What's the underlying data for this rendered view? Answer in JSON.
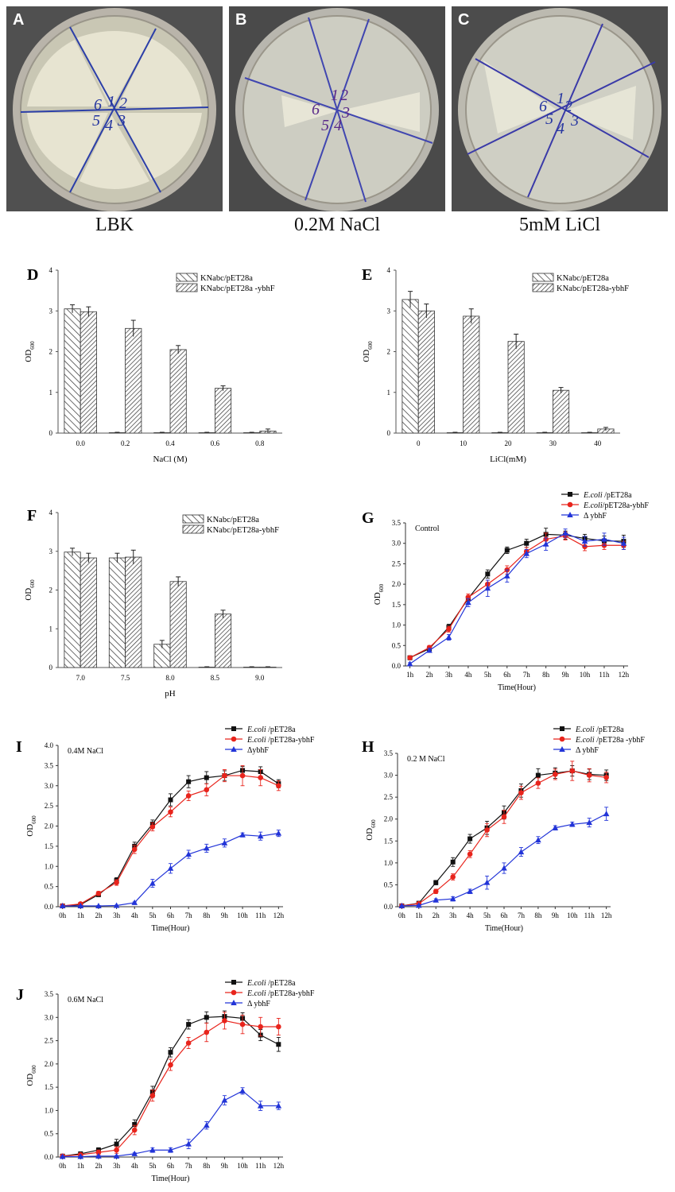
{
  "plates": [
    {
      "letter": "A",
      "caption": "LBK",
      "sectors": [
        "1",
        "2",
        "3",
        "4",
        "5",
        "6"
      ]
    },
    {
      "letter": "B",
      "caption": "0.2M NaCl",
      "sectors": [
        "1",
        "2",
        "3",
        "4",
        "5",
        "6"
      ]
    },
    {
      "letter": "C",
      "caption": "5mM LiCl",
      "sectors": [
        "1",
        "2",
        "3",
        "4",
        "5",
        "6"
      ]
    }
  ],
  "colors": {
    "black": "#111111",
    "red": "#e8241c",
    "blue": "#2234d8"
  },
  "chart_data": [
    {
      "panel": "D",
      "type": "bar",
      "categories": [
        "0.0",
        "0.2",
        "0.4",
        "0.6",
        "0.8"
      ],
      "xlabel": "NaCl (M)",
      "ylabel": "OD",
      "ylabel_sub": "600",
      "ylim": [
        0,
        4
      ],
      "yticks": [
        "0",
        "1",
        "2",
        "3",
        "4"
      ],
      "series": [
        {
          "name": "KNabc/pET28a",
          "pattern": "back",
          "values": [
            3.05,
            0.01,
            0.01,
            0.01,
            0.01
          ],
          "errors": [
            0.1,
            0.01,
            0.01,
            0.01,
            0.01
          ]
        },
        {
          "name": "KNabc/pET28a -ybhF",
          "pattern": "fwd",
          "values": [
            2.98,
            2.57,
            2.05,
            1.1,
            0.05
          ],
          "errors": [
            0.12,
            0.2,
            0.1,
            0.06,
            0.05
          ]
        }
      ]
    },
    {
      "panel": "E",
      "type": "bar",
      "categories": [
        "0",
        "10",
        "20",
        "30",
        "40"
      ],
      "xlabel": "LiCl(mM)",
      "ylabel": "OD",
      "ylabel_sub": "600",
      "ylim": [
        0,
        4
      ],
      "yticks": [
        "0",
        "1",
        "2",
        "3",
        "4"
      ],
      "series": [
        {
          "name": "KNabc/pET28a",
          "pattern": "back",
          "values": [
            3.28,
            0.01,
            0.01,
            0.01,
            0.01
          ],
          "errors": [
            0.2,
            0.01,
            0.01,
            0.01,
            0.01
          ]
        },
        {
          "name": "KNabc/pET28a-ybhF",
          "pattern": "fwd",
          "values": [
            3.0,
            2.87,
            2.25,
            1.05,
            0.1
          ],
          "errors": [
            0.17,
            0.18,
            0.18,
            0.07,
            0.04
          ]
        }
      ]
    },
    {
      "panel": "F",
      "type": "bar",
      "categories": [
        "7.0",
        "7.5",
        "8.0",
        "8.5",
        "9.0"
      ],
      "xlabel": "pH",
      "ylabel": "OD",
      "ylabel_sub": "600",
      "ylim": [
        0,
        4
      ],
      "yticks": [
        "0",
        "1",
        "2",
        "3",
        "4"
      ],
      "series": [
        {
          "name": "KNabc/pET28a",
          "pattern": "back",
          "values": [
            2.98,
            2.83,
            0.6,
            0.01,
            0.01
          ],
          "errors": [
            0.1,
            0.12,
            0.1,
            0.01,
            0.01
          ]
        },
        {
          "name": "KNabc/pET28a-ybhF",
          "pattern": "fwd",
          "values": [
            2.83,
            2.85,
            2.22,
            1.38,
            0.01
          ],
          "errors": [
            0.12,
            0.18,
            0.12,
            0.1,
            0.01
          ]
        }
      ]
    },
    {
      "panel": "G",
      "type": "line",
      "annotation": "Control",
      "x": [
        "1h",
        "2h",
        "3h",
        "4h",
        "5h",
        "6h",
        "7h",
        "8h",
        "9h",
        "10h",
        "11h",
        "12h"
      ],
      "xlabel": "Time(Hour)",
      "ylabel": "OD",
      "ylabel_sub": "600",
      "ylim": [
        0,
        3.5
      ],
      "yticks": [
        "0.0",
        "0.5",
        "1.0",
        "1.5",
        "2.0",
        "2.5",
        "3.0",
        "3.5"
      ],
      "series": [
        {
          "name_italic": "E.coli",
          "name_rest": " /pET28a",
          "color": "black",
          "marker": "square",
          "values": [
            0.2,
            0.42,
            0.95,
            1.65,
            2.25,
            2.83,
            3.0,
            3.22,
            3.2,
            3.12,
            3.06,
            3.05
          ],
          "errors": [
            0.03,
            0.05,
            0.07,
            0.07,
            0.1,
            0.08,
            0.1,
            0.15,
            0.1,
            0.1,
            0.12,
            0.15
          ]
        },
        {
          "name_italic": "E.coli",
          "name_rest": "/pET28a-ybhF",
          "color": "red",
          "marker": "circle",
          "values": [
            0.2,
            0.45,
            0.9,
            1.68,
            2.0,
            2.35,
            2.8,
            3.1,
            3.18,
            2.92,
            2.95,
            2.95
          ],
          "errors": [
            0.03,
            0.05,
            0.07,
            0.08,
            0.1,
            0.1,
            0.1,
            0.15,
            0.1,
            0.1,
            0.1,
            0.1
          ]
        },
        {
          "name_italic": "",
          "name_rest": "Δ ybhF",
          "color": "blue",
          "marker": "triangle",
          "values": [
            0.05,
            0.38,
            0.7,
            1.55,
            1.9,
            2.2,
            2.75,
            2.98,
            3.25,
            3.05,
            3.1,
            3.0
          ],
          "errors": [
            0.03,
            0.05,
            0.07,
            0.1,
            0.2,
            0.15,
            0.1,
            0.15,
            0.1,
            0.12,
            0.15,
            0.15
          ]
        }
      ]
    },
    {
      "panel": "I",
      "type": "line",
      "annotation": "0.4M NaCl",
      "x": [
        "0h",
        "1h",
        "2h",
        "3h",
        "4h",
        "5h",
        "6h",
        "7h",
        "8h",
        "9h",
        "10h",
        "11h",
        "12h"
      ],
      "xlabel": "Time(Hour)",
      "ylabel": "OD",
      "ylabel_sub": "600",
      "ylim": [
        0,
        4
      ],
      "yticks": [
        "0.0",
        "0.5",
        "1.0",
        "1.5",
        "2.0",
        "2.5",
        "3.0",
        "3.5",
        "4.0"
      ],
      "series": [
        {
          "name_italic": "E.coli",
          "name_rest": " /pET28a",
          "color": "black",
          "marker": "square",
          "values": [
            0.02,
            0.05,
            0.3,
            0.65,
            1.5,
            2.05,
            2.65,
            3.1,
            3.2,
            3.25,
            3.38,
            3.35,
            3.05
          ],
          "errors": [
            0.01,
            0.03,
            0.05,
            0.07,
            0.1,
            0.1,
            0.15,
            0.15,
            0.15,
            0.12,
            0.1,
            0.12,
            0.1
          ]
        },
        {
          "name_italic": "E.coli",
          "name_rest": " /pET28a-ybhF",
          "color": "red",
          "marker": "circle",
          "values": [
            0.02,
            0.07,
            0.33,
            0.6,
            1.42,
            1.98,
            2.35,
            2.75,
            2.9,
            3.25,
            3.25,
            3.2,
            3.0
          ],
          "errors": [
            0.01,
            0.03,
            0.05,
            0.07,
            0.1,
            0.1,
            0.12,
            0.12,
            0.15,
            0.15,
            0.25,
            0.2,
            0.12
          ]
        },
        {
          "name_italic": "",
          "name_rest": "ΔybhF",
          "color": "blue",
          "marker": "triangle",
          "values": [
            0.02,
            0.02,
            0.02,
            0.03,
            0.1,
            0.58,
            0.95,
            1.3,
            1.45,
            1.58,
            1.78,
            1.75,
            1.82
          ],
          "errors": [
            0.01,
            0.01,
            0.01,
            0.01,
            0.02,
            0.1,
            0.12,
            0.1,
            0.1,
            0.1,
            0.05,
            0.1,
            0.08
          ]
        }
      ]
    },
    {
      "panel": "H",
      "type": "line",
      "annotation": "0.2 M NaCl",
      "x": [
        "0h",
        "1h",
        "2h",
        "3h",
        "4h",
        "5h",
        "6h",
        "7h",
        "8h",
        "9h",
        "10h",
        "11h",
        "12h"
      ],
      "xlabel": "Time(Hour)",
      "ylabel": "OD",
      "ylabel_sub": "600",
      "ylim": [
        0,
        3.5
      ],
      "yticks": [
        "0.0",
        "0.5",
        "1.0",
        "1.5",
        "2.0",
        "2.5",
        "3.0",
        "3.5"
      ],
      "series": [
        {
          "name_italic": "E.coli",
          "name_rest": " /pET28a",
          "color": "black",
          "marker": "square",
          "values": [
            0.02,
            0.08,
            0.55,
            1.02,
            1.55,
            1.8,
            2.15,
            2.65,
            3.0,
            3.05,
            3.1,
            3.02,
            3.0
          ],
          "errors": [
            0.01,
            0.03,
            0.05,
            0.1,
            0.1,
            0.15,
            0.15,
            0.15,
            0.15,
            0.12,
            0.12,
            0.12,
            0.12
          ]
        },
        {
          "name_italic": "E.coli",
          "name_rest": " /pET28a -ybhF",
          "color": "red",
          "marker": "circle",
          "values": [
            0.02,
            0.07,
            0.35,
            0.68,
            1.2,
            1.75,
            2.05,
            2.6,
            2.82,
            3.02,
            3.1,
            3.0,
            2.95
          ],
          "errors": [
            0.01,
            0.03,
            0.05,
            0.07,
            0.08,
            0.15,
            0.15,
            0.15,
            0.12,
            0.12,
            0.22,
            0.15,
            0.12
          ]
        },
        {
          "name_italic": "",
          "name_rest": "Δ ybhF",
          "color": "blue",
          "marker": "triangle",
          "values": [
            0.02,
            0.03,
            0.15,
            0.18,
            0.35,
            0.55,
            0.88,
            1.25,
            1.52,
            1.8,
            1.88,
            1.92,
            2.12
          ],
          "errors": [
            0.01,
            0.01,
            0.03,
            0.05,
            0.05,
            0.15,
            0.12,
            0.1,
            0.08,
            0.05,
            0.05,
            0.1,
            0.15
          ]
        }
      ]
    },
    {
      "panel": "J",
      "type": "line",
      "annotation": "0.6M NaCl",
      "x": [
        "0h",
        "1h",
        "2h",
        "3h",
        "4h",
        "5h",
        "6h",
        "7h",
        "8h",
        "9h",
        "10h",
        "11h",
        "12h"
      ],
      "xlabel": "Time(Hour)",
      "ylabel": "OD",
      "ylabel_sub": "600",
      "ylim": [
        0,
        3.5
      ],
      "yticks": [
        "0.0",
        "0.5",
        "1.0",
        "1.5",
        "2.0",
        "2.5",
        "3.0",
        "3.5"
      ],
      "series": [
        {
          "name_italic": "E.coli",
          "name_rest": " /pET28a",
          "color": "black",
          "marker": "square",
          "values": [
            0.02,
            0.07,
            0.15,
            0.28,
            0.7,
            1.4,
            2.25,
            2.85,
            3.0,
            3.02,
            2.98,
            2.62,
            2.42
          ],
          "errors": [
            0.01,
            0.03,
            0.05,
            0.1,
            0.1,
            0.12,
            0.1,
            0.1,
            0.12,
            0.12,
            0.12,
            0.12,
            0.15
          ]
        },
        {
          "name_italic": "E.coli",
          "name_rest": " /pET28a-ybhF",
          "color": "red",
          "marker": "circle",
          "values": [
            0.02,
            0.05,
            0.1,
            0.15,
            0.58,
            1.32,
            1.98,
            2.45,
            2.68,
            2.93,
            2.85,
            2.8,
            2.8
          ],
          "errors": [
            0.01,
            0.03,
            0.05,
            0.07,
            0.1,
            0.12,
            0.12,
            0.12,
            0.2,
            0.18,
            0.2,
            0.2,
            0.18
          ]
        },
        {
          "name_italic": "",
          "name_rest": "Δ ybhF",
          "color": "blue",
          "marker": "triangle",
          "values": [
            0.01,
            0.01,
            0.02,
            0.02,
            0.07,
            0.15,
            0.15,
            0.28,
            0.68,
            1.22,
            1.42,
            1.1,
            1.1
          ],
          "errors": [
            0.01,
            0.01,
            0.01,
            0.01,
            0.02,
            0.05,
            0.05,
            0.1,
            0.08,
            0.1,
            0.07,
            0.1,
            0.08
          ]
        }
      ]
    }
  ]
}
